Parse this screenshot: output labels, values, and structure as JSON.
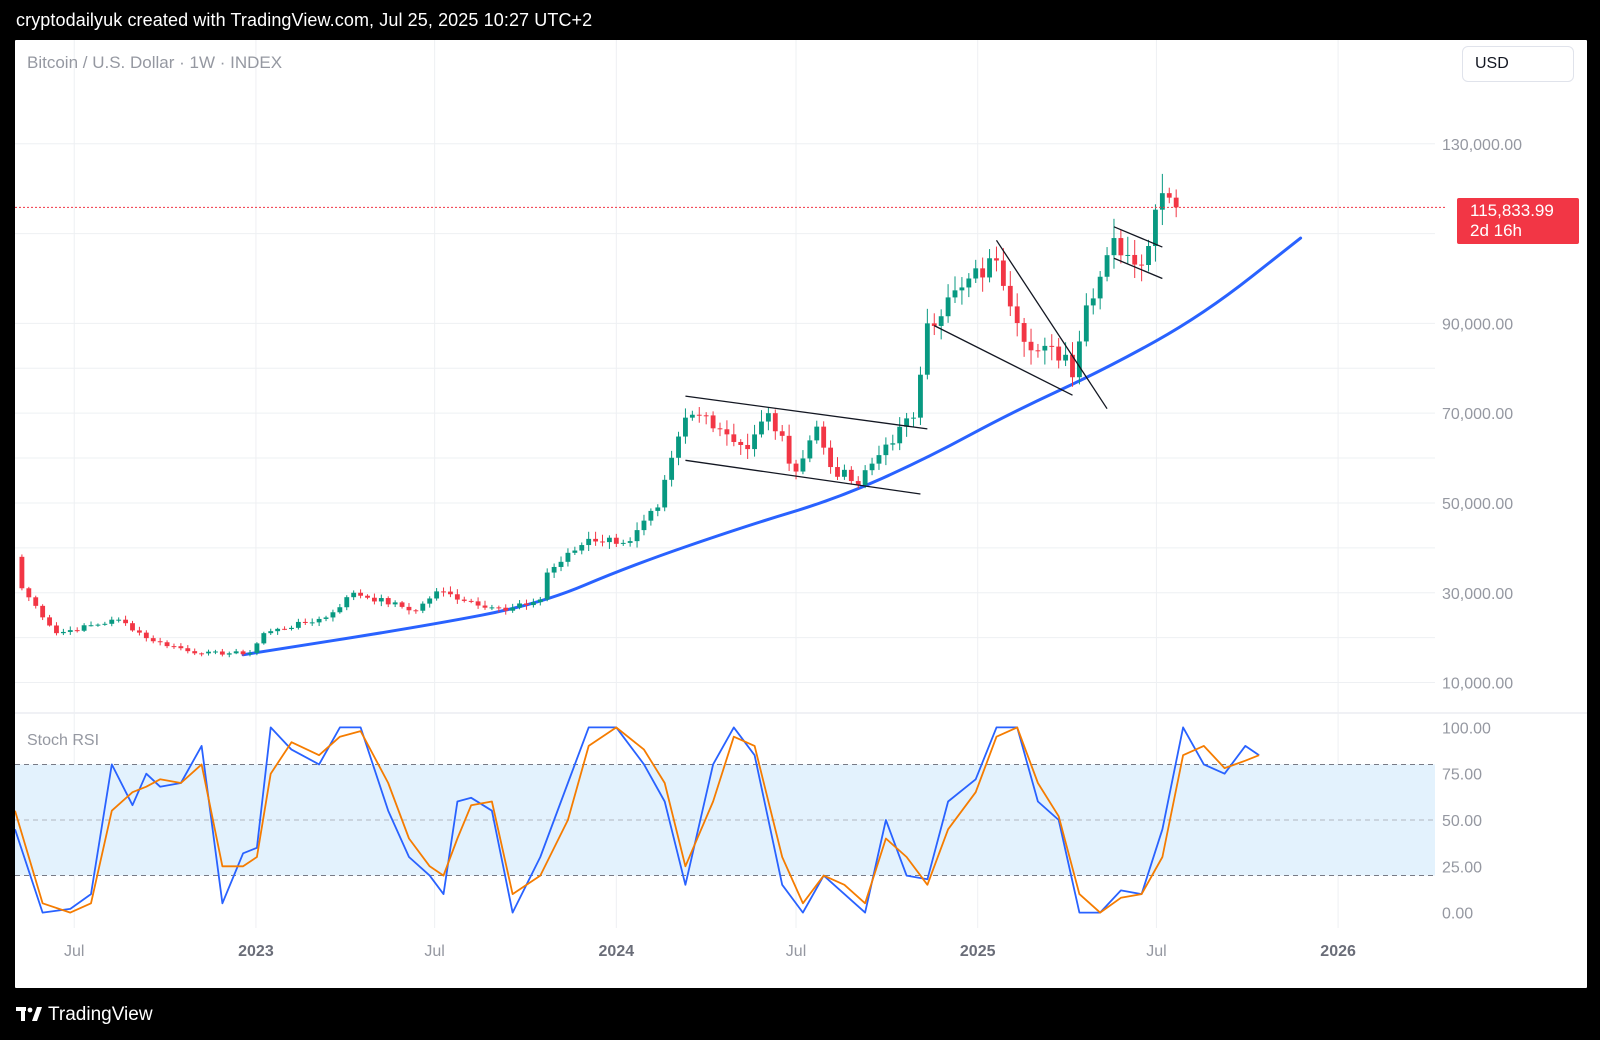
{
  "header": {
    "caption": "cryptodailyuk created with TradingView.com, Jul 25, 2025 10:27 UTC+2"
  },
  "symbol": {
    "title": "Bitcoin / U.S. Dollar · 1W · INDEX"
  },
  "currency_button": {
    "label": "USD"
  },
  "last_price": {
    "value": "115,833.99",
    "countdown": "2d 16h"
  },
  "indicator": {
    "name": "Stoch RSI"
  },
  "footer": {
    "brand": "TradingView"
  },
  "colors": {
    "up": "#089981",
    "down": "#f23645",
    "trendline": "#2962ff",
    "stoch_k": "#2962ff",
    "stoch_d": "#f57c00",
    "band_fill": "#e3f2fd",
    "grid": "#eef0f3",
    "axis_text": "#9598a1"
  },
  "icons": {
    "brand_logo": "tradingview-logo-icon"
  },
  "chart_data": [
    {
      "type": "candlestick",
      "title": "Bitcoin / U.S. Dollar · 1W · INDEX",
      "xlabel": "",
      "ylabel": "",
      "x_range": [
        "2022-05-02",
        "2026-03-30"
      ],
      "ylim": [
        5000,
        152000
      ],
      "y_ticks": [
        10000,
        30000,
        50000,
        70000,
        90000,
        130000
      ],
      "y_tick_labels": [
        "10,000.00",
        "30,000.00",
        "50,000.00",
        "70,000.00",
        "90,000.00",
        "130,000.00"
      ],
      "x_tick_labels": [
        {
          "date": "2022-07-01",
          "label": "Jul",
          "bold": false
        },
        {
          "date": "2023-01-01",
          "label": "2023",
          "bold": true
        },
        {
          "date": "2023-07-01",
          "label": "Jul",
          "bold": false
        },
        {
          "date": "2024-01-01",
          "label": "2024",
          "bold": true
        },
        {
          "date": "2024-07-01",
          "label": "Jul",
          "bold": false
        },
        {
          "date": "2025-01-01",
          "label": "2025",
          "bold": true
        },
        {
          "date": "2025-07-01",
          "label": "Jul",
          "bold": false
        },
        {
          "date": "2026-01-01",
          "label": "2026",
          "bold": true
        }
      ],
      "last_price": 115833.99,
      "close_anchors": [
        [
          "2022-05-02",
          38000
        ],
        [
          "2022-05-09",
          31000
        ],
        [
          "2022-06-13",
          21000
        ],
        [
          "2022-08-15",
          24000
        ],
        [
          "2022-09-19",
          19200
        ],
        [
          "2022-11-07",
          16500
        ],
        [
          "2022-12-26",
          16600
        ],
        [
          "2023-01-09",
          21000
        ],
        [
          "2023-03-13",
          24500
        ],
        [
          "2023-04-10",
          30000
        ],
        [
          "2023-06-12",
          26000
        ],
        [
          "2023-07-03",
          30300
        ],
        [
          "2023-09-11",
          26000
        ],
        [
          "2023-10-16",
          28500
        ],
        [
          "2023-10-23",
          34500
        ],
        [
          "2023-12-04",
          42000
        ],
        [
          "2024-01-15",
          41500
        ],
        [
          "2024-02-12",
          49000
        ],
        [
          "2024-03-11",
          69000
        ],
        [
          "2024-04-01",
          69500
        ],
        [
          "2024-05-13",
          62000
        ],
        [
          "2024-06-03",
          70000
        ],
        [
          "2024-07-01",
          57000
        ],
        [
          "2024-07-22",
          67000
        ],
        [
          "2024-08-05",
          58000
        ],
        [
          "2024-09-02",
          54000
        ],
        [
          "2024-09-30",
          63000
        ],
        [
          "2024-10-28",
          69000
        ],
        [
          "2024-11-11",
          90000
        ],
        [
          "2024-12-16",
          98000
        ],
        [
          "2025-01-20",
          104000
        ],
        [
          "2025-02-24",
          84000
        ],
        [
          "2025-03-31",
          83000
        ],
        [
          "2025-04-07",
          78000
        ],
        [
          "2025-04-21",
          94000
        ],
        [
          "2025-05-19",
          109000
        ],
        [
          "2025-06-16",
          103000
        ],
        [
          "2025-07-07",
          119000
        ],
        [
          "2025-07-14",
          118000
        ],
        [
          "2025-07-21",
          115834
        ]
      ],
      "annotations": [
        {
          "kind": "channel_line",
          "from": [
            "2024-03-11",
            73800
          ],
          "to": [
            "2024-11-11",
            66500
          ]
        },
        {
          "kind": "channel_line",
          "from": [
            "2024-03-11",
            59500
          ],
          "to": [
            "2024-11-04",
            52000
          ]
        },
        {
          "kind": "channel_line",
          "from": [
            "2024-11-18",
            89500
          ],
          "to": [
            "2025-04-07",
            74000
          ]
        },
        {
          "kind": "channel_line",
          "from": [
            "2025-01-20",
            108500
          ],
          "to": [
            "2025-05-12",
            71000
          ]
        },
        {
          "kind": "channel_line",
          "from": [
            "2025-05-19",
            111500
          ],
          "to": [
            "2025-07-07",
            107000
          ]
        },
        {
          "kind": "channel_line",
          "from": [
            "2025-05-19",
            104500
          ],
          "to": [
            "2025-07-07",
            100000
          ]
        },
        {
          "kind": "trend_curve",
          "points": [
            [
              "2022-12-19",
              16200
            ],
            [
              "2023-06-19",
              22500
            ],
            [
              "2023-10-16",
              27500
            ],
            [
              "2024-01-15",
              36000
            ],
            [
              "2024-05-13",
              45000
            ],
            [
              "2024-08-12",
              51000
            ],
            [
              "2024-11-11",
              60000
            ],
            [
              "2025-02-03",
              70000
            ],
            [
              "2025-05-12",
              80000
            ],
            [
              "2025-08-18",
              92000
            ],
            [
              "2025-11-24",
              109000
            ]
          ]
        }
      ]
    },
    {
      "type": "line",
      "title": "Stoch RSI",
      "ylim": [
        -4,
        104
      ],
      "y_ticks": [
        0,
        25,
        50,
        75,
        100
      ],
      "y_tick_labels": [
        "0.00",
        "25.00",
        "50.00",
        "75.00",
        "100.00"
      ],
      "band": [
        20,
        80
      ],
      "series": [
        {
          "name": "",
          "color": "#2962ff",
          "points": [
            [
              "2022-05-02",
              45
            ],
            [
              "2022-05-30",
              0
            ],
            [
              "2022-06-27",
              2
            ],
            [
              "2022-07-18",
              10
            ],
            [
              "2022-08-08",
              80
            ],
            [
              "2022-08-29",
              58
            ],
            [
              "2022-09-12",
              75
            ],
            [
              "2022-09-26",
              68
            ],
            [
              "2022-10-17",
              70
            ],
            [
              "2022-11-07",
              90
            ],
            [
              "2022-11-28",
              5
            ],
            [
              "2022-12-19",
              32
            ],
            [
              "2023-01-02",
              35
            ],
            [
              "2023-01-16",
              100
            ],
            [
              "2023-02-06",
              88
            ],
            [
              "2023-03-06",
              80
            ],
            [
              "2023-03-27",
              100
            ],
            [
              "2023-04-17",
              100
            ],
            [
              "2023-05-15",
              55
            ],
            [
              "2023-06-05",
              30
            ],
            [
              "2023-06-26",
              20
            ],
            [
              "2023-07-10",
              10
            ],
            [
              "2023-07-24",
              60
            ],
            [
              "2023-08-07",
              62
            ],
            [
              "2023-08-28",
              55
            ],
            [
              "2023-09-18",
              0
            ],
            [
              "2023-10-16",
              30
            ],
            [
              "2023-11-13",
              70
            ],
            [
              "2023-12-04",
              100
            ],
            [
              "2024-01-01",
              100
            ],
            [
              "2024-01-29",
              80
            ],
            [
              "2024-02-19",
              60
            ],
            [
              "2024-03-11",
              15
            ],
            [
              "2024-04-08",
              80
            ],
            [
              "2024-04-29",
              100
            ],
            [
              "2024-05-20",
              85
            ],
            [
              "2024-06-17",
              15
            ],
            [
              "2024-07-08",
              0
            ],
            [
              "2024-07-29",
              20
            ],
            [
              "2024-08-19",
              10
            ],
            [
              "2024-09-09",
              0
            ],
            [
              "2024-09-30",
              50
            ],
            [
              "2024-10-21",
              20
            ],
            [
              "2024-11-11",
              18
            ],
            [
              "2024-12-02",
              60
            ],
            [
              "2024-12-30",
              72
            ],
            [
              "2025-01-20",
              100
            ],
            [
              "2025-02-10",
              100
            ],
            [
              "2025-03-03",
              60
            ],
            [
              "2025-03-24",
              50
            ],
            [
              "2025-04-14",
              0
            ],
            [
              "2025-05-05",
              0
            ],
            [
              "2025-05-26",
              12
            ],
            [
              "2025-06-16",
              10
            ],
            [
              "2025-07-07",
              45
            ],
            [
              "2025-07-28",
              100
            ],
            [
              "2025-08-18",
              80
            ],
            [
              "2025-09-08",
              75
            ],
            [
              "2025-09-29",
              90
            ],
            [
              "2025-10-13",
              85
            ]
          ]
        },
        {
          "name": "",
          "color": "#f57c00",
          "points": [
            [
              "2022-05-02",
              55
            ],
            [
              "2022-05-30",
              5
            ],
            [
              "2022-06-27",
              0
            ],
            [
              "2022-07-18",
              5
            ],
            [
              "2022-08-08",
              55
            ],
            [
              "2022-08-29",
              65
            ],
            [
              "2022-09-12",
              68
            ],
            [
              "2022-09-26",
              72
            ],
            [
              "2022-10-17",
              70
            ],
            [
              "2022-11-07",
              80
            ],
            [
              "2022-11-28",
              25
            ],
            [
              "2022-12-19",
              25
            ],
            [
              "2023-01-02",
              30
            ],
            [
              "2023-01-16",
              75
            ],
            [
              "2023-02-06",
              92
            ],
            [
              "2023-03-06",
              85
            ],
            [
              "2023-03-27",
              95
            ],
            [
              "2023-04-17",
              98
            ],
            [
              "2023-05-15",
              70
            ],
            [
              "2023-06-05",
              40
            ],
            [
              "2023-06-26",
              25
            ],
            [
              "2023-07-10",
              20
            ],
            [
              "2023-07-24",
              40
            ],
            [
              "2023-08-07",
              58
            ],
            [
              "2023-08-28",
              60
            ],
            [
              "2023-09-18",
              10
            ],
            [
              "2023-10-16",
              20
            ],
            [
              "2023-11-13",
              50
            ],
            [
              "2023-12-04",
              90
            ],
            [
              "2024-01-01",
              100
            ],
            [
              "2024-01-29",
              88
            ],
            [
              "2024-02-19",
              70
            ],
            [
              "2024-03-11",
              25
            ],
            [
              "2024-04-08",
              60
            ],
            [
              "2024-04-29",
              95
            ],
            [
              "2024-05-20",
              90
            ],
            [
              "2024-06-17",
              30
            ],
            [
              "2024-07-08",
              5
            ],
            [
              "2024-07-29",
              20
            ],
            [
              "2024-08-19",
              15
            ],
            [
              "2024-09-09",
              5
            ],
            [
              "2024-09-30",
              40
            ],
            [
              "2024-10-21",
              30
            ],
            [
              "2024-11-11",
              15
            ],
            [
              "2024-12-02",
              45
            ],
            [
              "2024-12-30",
              65
            ],
            [
              "2025-01-20",
              95
            ],
            [
              "2025-02-10",
              100
            ],
            [
              "2025-03-03",
              70
            ],
            [
              "2025-03-24",
              52
            ],
            [
              "2025-04-14",
              10
            ],
            [
              "2025-05-05",
              0
            ],
            [
              "2025-05-26",
              8
            ],
            [
              "2025-06-16",
              10
            ],
            [
              "2025-07-07",
              30
            ],
            [
              "2025-07-28",
              85
            ],
            [
              "2025-08-18",
              90
            ],
            [
              "2025-09-08",
              78
            ],
            [
              "2025-09-29",
              82
            ],
            [
              "2025-10-13",
              85
            ]
          ]
        }
      ]
    }
  ]
}
